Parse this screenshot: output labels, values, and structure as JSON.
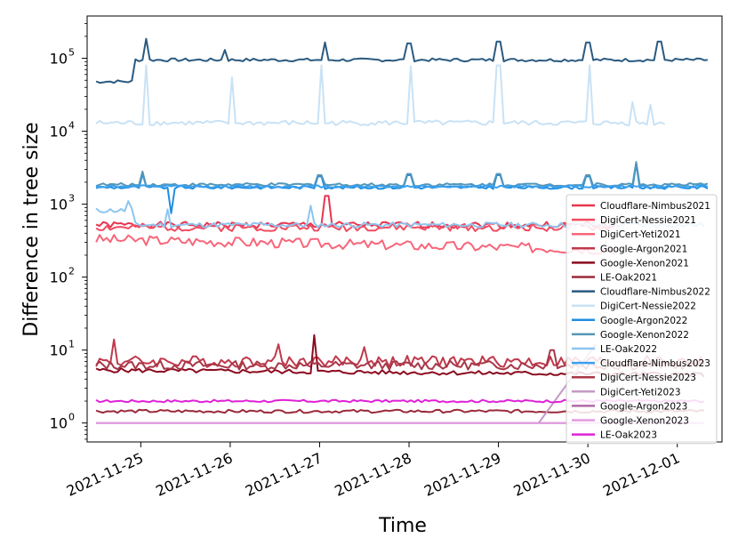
{
  "chart_data": {
    "type": "line",
    "title": "",
    "xlabel": "Time",
    "ylabel": "Difference in tree size",
    "yscale": "log",
    "ylim": [
      0.55,
      380000
    ],
    "xlim": [
      -0.6,
      6.5
    ],
    "x_ticks": [
      {
        "x": 0,
        "label": "2021-11-25"
      },
      {
        "x": 1,
        "label": "2021-11-26"
      },
      {
        "x": 2,
        "label": "2021-11-27"
      },
      {
        "x": 3,
        "label": "2021-11-28"
      },
      {
        "x": 4,
        "label": "2021-11-29"
      },
      {
        "x": 5,
        "label": "2021-11-30"
      },
      {
        "x": 6,
        "label": "2021-12-01"
      }
    ],
    "y_ticks": [
      {
        "value": 1,
        "base": "10",
        "exp": "0"
      },
      {
        "value": 10,
        "base": "10",
        "exp": "1"
      },
      {
        "value": 100,
        "base": "10",
        "exp": "2"
      },
      {
        "value": 1000,
        "base": "10",
        "exp": "3"
      },
      {
        "value": 10000,
        "base": "10",
        "exp": "4"
      },
      {
        "value": 100000,
        "base": "10",
        "exp": "5"
      }
    ],
    "legend_position": "right",
    "series": [
      {
        "name": "Cloudflare-Nimbus2021",
        "color": "#e8354f",
        "x_start": -0.5,
        "x_end": 5.3,
        "base": 520,
        "noise": 0.1,
        "spikes": [
          {
            "x": 2.08,
            "value": 1300
          }
        ],
        "seed": 1
      },
      {
        "name": "DigiCert-Nessie2021",
        "color": "#f04c63",
        "x_start": -0.5,
        "x_end": 5.3,
        "base": 480,
        "noise": 0.12,
        "spikes": [],
        "seed": 2
      },
      {
        "name": "DigiCert-Yeti2021",
        "color": "#f7667a",
        "x_start": -0.5,
        "x_end": 5.3,
        "base": 330,
        "noise": 0.16,
        "spikes": [],
        "trend_end": 240,
        "seed": 3
      },
      {
        "name": "Google-Argon2021",
        "color": "#c0394c",
        "x_start": -0.5,
        "x_end": 6.3,
        "base": 7,
        "noise": 0.18,
        "spikes": [
          {
            "x": -0.3,
            "value": 14
          },
          {
            "x": 1.55,
            "value": 12
          },
          {
            "x": 2.5,
            "value": 11
          }
        ],
        "seed": 4
      },
      {
        "name": "Google-Xenon2021",
        "color": "#8b0a1f",
        "x_start": -0.5,
        "x_end": 6.3,
        "base": 5.3,
        "noise": 0.07,
        "spikes": [
          {
            "x": 1.95,
            "value": 16
          }
        ],
        "trend_end": 4.6,
        "seed": 5
      },
      {
        "name": "LE-Oak2021",
        "color": "#9a2a3a",
        "x_start": -0.5,
        "x_end": 6.3,
        "base": 1.45,
        "noise": 0.05,
        "spikes": [],
        "seed": 6
      },
      {
        "name": "Cloudflare-Nimbus2022",
        "color": "#2a5a80",
        "x_start": -0.5,
        "x_end": 6.35,
        "base": 95000,
        "noise": 0.05,
        "start_value": 48000,
        "spikes": [
          {
            "x": 0.07,
            "value": 185000
          },
          {
            "x": 0.95,
            "value": 130000
          },
          {
            "x": 2.05,
            "value": 165000
          },
          {
            "x": 3.0,
            "value": 160000
          },
          {
            "x": 4.0,
            "value": 170000
          },
          {
            "x": 5.0,
            "value": 165000
          },
          {
            "x": 5.8,
            "value": 170000
          }
        ],
        "seed": 7
      },
      {
        "name": "DigiCert-Nessie2022",
        "color": "#c9e2f5",
        "x_start": -0.5,
        "x_end": 5.85,
        "base": 13000,
        "noise": 0.08,
        "spikes": [
          {
            "x": 0.07,
            "value": 80000
          },
          {
            "x": 1.03,
            "value": 55000
          },
          {
            "x": 2.03,
            "value": 80000
          },
          {
            "x": 3.03,
            "value": 78000
          },
          {
            "x": 4.0,
            "value": 80000
          },
          {
            "x": 5.03,
            "value": 80000
          },
          {
            "x": 5.5,
            "value": 25000
          },
          {
            "x": 5.7,
            "value": 23000
          }
        ],
        "seed": 8
      },
      {
        "name": "Google-Argon2022",
        "color": "#1f8ee0",
        "x_start": -0.5,
        "x_end": 6.35,
        "base": 1700,
        "noise": 0.05,
        "spikes": [
          {
            "x": 0.03,
            "value": 2600
          },
          {
            "x": 0.35,
            "value": 750
          },
          {
            "x": 2.0,
            "value": 2400
          },
          {
            "x": 3.0,
            "value": 2500
          },
          {
            "x": 4.0,
            "value": 2500
          },
          {
            "x": 5.0,
            "value": 2400
          },
          {
            "x": 5.55,
            "value": 3600
          }
        ],
        "seed": 9
      },
      {
        "name": "Google-Xenon2022",
        "color": "#5496b8",
        "x_start": -0.5,
        "x_end": 6.35,
        "base": 1850,
        "noise": 0.05,
        "spikes": [
          {
            "x": 0.03,
            "value": 2800
          },
          {
            "x": 2.0,
            "value": 2500
          },
          {
            "x": 3.0,
            "value": 2600
          },
          {
            "x": 4.0,
            "value": 2600
          },
          {
            "x": 5.0,
            "value": 2500
          },
          {
            "x": 5.55,
            "value": 3800
          }
        ],
        "seed": 10
      },
      {
        "name": "LE-Oak2022",
        "color": "#8ec5ee",
        "x_start": -0.5,
        "x_end": 6.3,
        "base": 520,
        "noise": 0.08,
        "start_value": 820,
        "spikes": [
          {
            "x": -0.15,
            "value": 1100
          },
          {
            "x": 0.3,
            "value": 850
          },
          {
            "x": 1.9,
            "value": 950
          }
        ],
        "seed": 11
      },
      {
        "name": "Cloudflare-Nimbus2023",
        "color": "#3aa0ee",
        "x_start": -0.5,
        "x_end": 6.35,
        "base": 1750,
        "noise": 0.04,
        "spikes": [],
        "seed": 12
      },
      {
        "name": "DigiCert-Nessie2023",
        "color": "#a83848",
        "x_start": -0.5,
        "x_end": 6.3,
        "base": 6.2,
        "noise": 0.14,
        "spikes": [
          {
            "x": 4.6,
            "value": 10
          }
        ],
        "seed": 13
      },
      {
        "name": "DigiCert-Yeti2023",
        "color": "#c49ac4",
        "x_start": 4.45,
        "x_end": 5.1,
        "base": 1.0,
        "noise": 0.0,
        "ramp_to": 12,
        "spikes": [],
        "seed": 14
      },
      {
        "name": "Google-Argon2023",
        "color": "#b06aa8",
        "x_start": -0.5,
        "x_end": 6.3,
        "base": 1.0,
        "noise": 0.0,
        "spikes": [],
        "seed": 15
      },
      {
        "name": "Google-Xenon2023",
        "color": "#e29ce0",
        "x_start": -0.5,
        "x_end": 6.3,
        "base": 1.0,
        "noise": 0.0,
        "spikes": [],
        "seed": 16
      },
      {
        "name": "LE-Oak2023",
        "color": "#e020d8",
        "x_start": -0.5,
        "x_end": 6.3,
        "base": 2.0,
        "noise": 0.04,
        "spikes": [],
        "seed": 17
      }
    ]
  }
}
